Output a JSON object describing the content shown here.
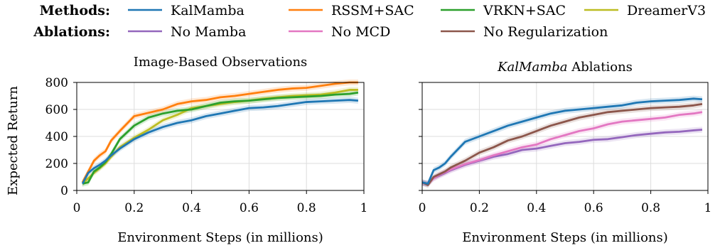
{
  "legend": {
    "methods_title": "Methods:",
    "ablations_title": "Ablations:",
    "methods": [
      {
        "name": "KalMamba",
        "color": "#1f77b4"
      },
      {
        "name": "RSSM+SAC",
        "color": "#ff7f0e"
      },
      {
        "name": "VRKN+SAC",
        "color": "#2ca02c"
      },
      {
        "name": "DreamerV3",
        "color": "#bcbd22"
      }
    ],
    "ablations": [
      {
        "name": "No Mamba",
        "color": "#9467bd"
      },
      {
        "name": "No MCD",
        "color": "#e377c2"
      },
      {
        "name": "No Regularization",
        "color": "#8c564b"
      }
    ]
  },
  "chart_data": [
    {
      "type": "line",
      "title": "Image-Based Observations",
      "title_italic": false,
      "xlabel": "Environment Steps (in millions)",
      "ylabel": "Expected Return",
      "xlim": [
        0,
        1
      ],
      "ylim": [
        0,
        800
      ],
      "xticks": [
        0,
        0.2,
        0.4,
        0.6,
        0.8,
        1
      ],
      "xtick_labels": [
        "0",
        "0.2",
        "0.4",
        "0.6",
        "0.8",
        "1"
      ],
      "yticks": [
        0,
        200,
        400,
        600,
        800
      ],
      "ytick_labels": [
        "0",
        "200",
        "400",
        "600",
        "800"
      ],
      "grid": true,
      "series": [
        {
          "name": "DreamerV3",
          "color": "#bcbd22",
          "x": [
            0.02,
            0.04,
            0.06,
            0.08,
            0.1,
            0.12,
            0.15,
            0.2,
            0.25,
            0.3,
            0.35,
            0.4,
            0.45,
            0.5,
            0.55,
            0.6,
            0.65,
            0.7,
            0.75,
            0.8,
            0.85,
            0.9,
            0.95,
            0.98
          ],
          "y": [
            50,
            90,
            130,
            165,
            200,
            250,
            320,
            390,
            450,
            520,
            560,
            610,
            625,
            640,
            655,
            665,
            680,
            690,
            700,
            705,
            710,
            725,
            745,
            745
          ]
        },
        {
          "name": "VRKN+SAC",
          "color": "#2ca02c",
          "x": [
            0.02,
            0.04,
            0.06,
            0.08,
            0.1,
            0.12,
            0.15,
            0.2,
            0.25,
            0.3,
            0.35,
            0.4,
            0.45,
            0.5,
            0.55,
            0.6,
            0.65,
            0.7,
            0.75,
            0.8,
            0.85,
            0.9,
            0.95,
            0.98
          ],
          "y": [
            50,
            60,
            140,
            170,
            210,
            270,
            380,
            480,
            540,
            570,
            590,
            600,
            625,
            650,
            660,
            665,
            675,
            685,
            690,
            695,
            700,
            710,
            715,
            725
          ]
        },
        {
          "name": "RSSM+SAC",
          "color": "#ff7f0e",
          "x": [
            0.02,
            0.04,
            0.06,
            0.08,
            0.1,
            0.12,
            0.15,
            0.2,
            0.25,
            0.3,
            0.35,
            0.4,
            0.45,
            0.5,
            0.55,
            0.6,
            0.65,
            0.7,
            0.75,
            0.8,
            0.85,
            0.9,
            0.95,
            0.98
          ],
          "y": [
            60,
            140,
            220,
            260,
            290,
            370,
            440,
            550,
            575,
            600,
            640,
            660,
            670,
            690,
            700,
            715,
            730,
            745,
            755,
            760,
            775,
            790,
            800,
            800
          ]
        },
        {
          "name": "KalMamba",
          "color": "#1f77b4",
          "x": [
            0.02,
            0.04,
            0.06,
            0.08,
            0.1,
            0.12,
            0.15,
            0.2,
            0.25,
            0.3,
            0.35,
            0.4,
            0.45,
            0.5,
            0.55,
            0.6,
            0.65,
            0.7,
            0.75,
            0.8,
            0.85,
            0.9,
            0.95,
            0.98
          ],
          "y": [
            50,
            130,
            165,
            190,
            220,
            260,
            310,
            380,
            430,
            470,
            500,
            520,
            550,
            570,
            590,
            610,
            615,
            625,
            640,
            655,
            660,
            665,
            670,
            665
          ]
        }
      ]
    },
    {
      "type": "line",
      "title": "KalMamba Ablations",
      "title_italic_part": "KalMamba",
      "title_rest": " Ablations",
      "xlabel": "Environment Steps (in millions)",
      "ylabel": "",
      "xlim": [
        0,
        1
      ],
      "ylim": [
        0,
        800
      ],
      "xticks": [
        0,
        0.2,
        0.4,
        0.6,
        0.8,
        1
      ],
      "xtick_labels": [
        "0",
        "0.2",
        "0.4",
        "0.6",
        "0.8",
        "1"
      ],
      "yticks": [
        0,
        200,
        400,
        600,
        800
      ],
      "ytick_labels": [],
      "grid": true,
      "series": [
        {
          "name": "No Mamba",
          "color": "#9467bd",
          "x": [
            0.0,
            0.02,
            0.04,
            0.06,
            0.08,
            0.1,
            0.15,
            0.2,
            0.25,
            0.3,
            0.35,
            0.4,
            0.45,
            0.5,
            0.55,
            0.6,
            0.65,
            0.7,
            0.75,
            0.8,
            0.85,
            0.9,
            0.95,
            0.98
          ],
          "y": [
            55,
            50,
            90,
            110,
            130,
            150,
            190,
            220,
            250,
            270,
            300,
            310,
            330,
            350,
            360,
            375,
            380,
            395,
            410,
            420,
            430,
            435,
            445,
            450
          ]
        },
        {
          "name": "No MCD",
          "color": "#e377c2",
          "x": [
            0.0,
            0.02,
            0.04,
            0.06,
            0.08,
            0.1,
            0.15,
            0.2,
            0.25,
            0.3,
            0.35,
            0.4,
            0.45,
            0.5,
            0.55,
            0.6,
            0.65,
            0.7,
            0.75,
            0.8,
            0.85,
            0.9,
            0.95,
            0.98
          ],
          "y": [
            55,
            50,
            90,
            115,
            135,
            155,
            195,
            225,
            260,
            290,
            320,
            340,
            380,
            410,
            440,
            460,
            490,
            510,
            520,
            530,
            540,
            560,
            570,
            580
          ]
        },
        {
          "name": "No Regularization",
          "color": "#8c564b",
          "x": [
            0.0,
            0.02,
            0.04,
            0.06,
            0.08,
            0.1,
            0.15,
            0.2,
            0.25,
            0.3,
            0.35,
            0.4,
            0.45,
            0.5,
            0.55,
            0.6,
            0.65,
            0.7,
            0.75,
            0.8,
            0.85,
            0.9,
            0.95,
            0.98
          ],
          "y": [
            60,
            40,
            100,
            120,
            140,
            170,
            220,
            280,
            320,
            370,
            400,
            440,
            480,
            510,
            540,
            560,
            580,
            590,
            600,
            610,
            615,
            620,
            630,
            640
          ]
        },
        {
          "name": "KalMamba",
          "color": "#1f77b4",
          "x": [
            0.0,
            0.02,
            0.04,
            0.06,
            0.08,
            0.1,
            0.15,
            0.2,
            0.25,
            0.3,
            0.35,
            0.4,
            0.45,
            0.5,
            0.55,
            0.6,
            0.65,
            0.7,
            0.75,
            0.8,
            0.85,
            0.9,
            0.95,
            0.98
          ],
          "y": [
            60,
            50,
            150,
            170,
            200,
            250,
            360,
            400,
            440,
            480,
            510,
            540,
            570,
            590,
            600,
            610,
            620,
            630,
            650,
            660,
            665,
            670,
            680,
            675
          ]
        }
      ]
    }
  ]
}
